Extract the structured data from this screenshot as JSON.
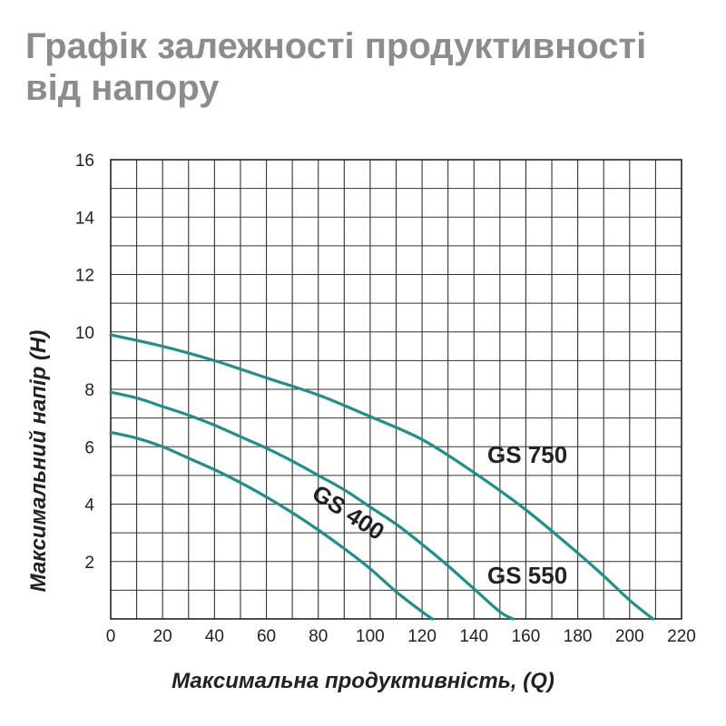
{
  "chart_data": {
    "type": "line",
    "title": "Графік залежності продуктивності від напору",
    "xlabel": "Максимальна продуктивність, (Q)",
    "ylabel": "Максимальний напір (H)",
    "xlim": [
      0,
      220
    ],
    "ylim": [
      0,
      16
    ],
    "xticks": [
      0,
      20,
      40,
      60,
      80,
      100,
      120,
      140,
      160,
      180,
      200,
      220
    ],
    "yticks": [
      2,
      4,
      6,
      8,
      10,
      12,
      14,
      16
    ],
    "x_minor_step": 10,
    "y_minor_step": 1,
    "grid": true,
    "line_color": "#1f8f8a",
    "series": [
      {
        "name": "GS 400",
        "x": [
          0,
          10,
          20,
          30,
          40,
          50,
          60,
          70,
          80,
          90,
          100,
          110,
          120,
          124
        ],
        "y": [
          6.5,
          6.3,
          6.0,
          5.6,
          5.2,
          4.75,
          4.25,
          3.7,
          3.1,
          2.45,
          1.75,
          0.95,
          0.25,
          0
        ]
      },
      {
        "name": "GS 550",
        "x": [
          0,
          10,
          20,
          30,
          40,
          50,
          60,
          70,
          80,
          90,
          100,
          110,
          120,
          130,
          140,
          150,
          155
        ],
        "y": [
          7.9,
          7.7,
          7.4,
          7.1,
          6.75,
          6.35,
          5.95,
          5.5,
          5.0,
          4.5,
          3.9,
          3.3,
          2.6,
          1.85,
          1.05,
          0.25,
          0
        ]
      },
      {
        "name": "GS 750",
        "x": [
          0,
          20,
          40,
          60,
          80,
          100,
          120,
          140,
          160,
          180,
          190,
          200,
          209
        ],
        "y": [
          9.9,
          9.5,
          9.0,
          8.4,
          7.8,
          7.05,
          6.25,
          5.1,
          3.8,
          2.3,
          1.5,
          0.65,
          0
        ]
      }
    ]
  }
}
